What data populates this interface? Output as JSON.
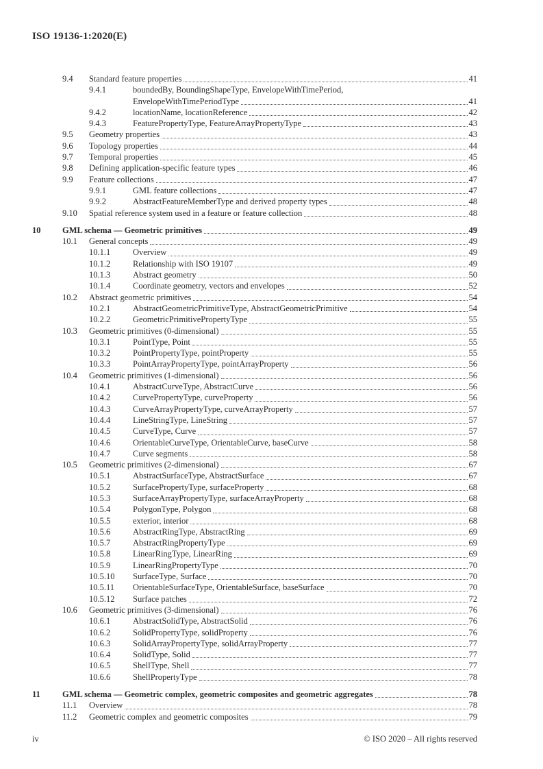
{
  "header": {
    "doc_id": "ISO 19136-1:2020(E)"
  },
  "footer": {
    "page_label": "iv",
    "copyright": "© ISO 2020 – All rights reserved"
  },
  "toc": {
    "entries": [
      {
        "level": 2,
        "number": "9.4",
        "title": "Standard feature properties",
        "page": "41"
      },
      {
        "level": 3,
        "number": "9.4.1",
        "title": "boundedBy, BoundingShapeType, EnvelopeWithTimePeriod,",
        "title_line2": "EnvelopeWithTimePeriodType",
        "page": "41"
      },
      {
        "level": 3,
        "number": "9.4.2",
        "title": "locationName, locationReference",
        "page": "42"
      },
      {
        "level": 3,
        "number": "9.4.3",
        "title": "FeaturePropertyType, FeatureArrayPropertyType",
        "page": "43"
      },
      {
        "level": 2,
        "number": "9.5",
        "title": "Geometry properties",
        "page": "43"
      },
      {
        "level": 2,
        "number": "9.6",
        "title": "Topology properties",
        "page": "44"
      },
      {
        "level": 2,
        "number": "9.7",
        "title": "Temporal properties",
        "page": "45"
      },
      {
        "level": 2,
        "number": "9.8",
        "title": "Defining application-specific feature types",
        "page": "46"
      },
      {
        "level": 2,
        "number": "9.9",
        "title": "Feature collections",
        "page": "47"
      },
      {
        "level": 3,
        "number": "9.9.1",
        "title": "GML feature collections",
        "page": "47"
      },
      {
        "level": 3,
        "number": "9.9.2",
        "title": "AbstractFeatureMemberType and derived property types",
        "page": "48"
      },
      {
        "level": 2,
        "number": "9.10",
        "title": "Spatial reference system used in a feature or feature collection",
        "page": "48"
      },
      {
        "level": 1,
        "number": "10",
        "title": "GML schema — Geometric primitives",
        "page": "49"
      },
      {
        "level": 2,
        "number": "10.1",
        "title": "General concepts",
        "page": "49"
      },
      {
        "level": 3,
        "number": "10.1.1",
        "title": "Overview",
        "page": "49"
      },
      {
        "level": 3,
        "number": "10.1.2",
        "title": "Relationship with ISO 19107",
        "page": "49"
      },
      {
        "level": 3,
        "number": "10.1.3",
        "title": "Abstract geometry",
        "page": "50"
      },
      {
        "level": 3,
        "number": "10.1.4",
        "title": "Coordinate geometry, vectors and envelopes",
        "page": "52"
      },
      {
        "level": 2,
        "number": "10.2",
        "title": "Abstract geometric primitives",
        "page": "54"
      },
      {
        "level": 3,
        "number": "10.2.1",
        "title": "AbstractGeometricPrimitiveType, AbstractGeometricPrimitive",
        "page": "54"
      },
      {
        "level": 3,
        "number": "10.2.2",
        "title": "GeometricPrimitivePropertyType",
        "page": "55"
      },
      {
        "level": 2,
        "number": "10.3",
        "title": "Geometric primitives (0-dimensional)",
        "page": "55"
      },
      {
        "level": 3,
        "number": "10.3.1",
        "title": "PointType, Point",
        "page": "55"
      },
      {
        "level": 3,
        "number": "10.3.2",
        "title": "PointPropertyType, pointProperty",
        "page": "55"
      },
      {
        "level": 3,
        "number": "10.3.3",
        "title": "PointArrayPropertyType, pointArrayProperty",
        "page": "56"
      },
      {
        "level": 2,
        "number": "10.4",
        "title": "Geometric primitives (1-dimensional)",
        "page": "56"
      },
      {
        "level": 3,
        "number": "10.4.1",
        "title": "AbstractCurveType, AbstractCurve",
        "page": "56"
      },
      {
        "level": 3,
        "number": "10.4.2",
        "title": "CurvePropertyType, curveProperty",
        "page": "56"
      },
      {
        "level": 3,
        "number": "10.4.3",
        "title": "CurveArrayPropertyType, curveArrayProperty",
        "page": "57"
      },
      {
        "level": 3,
        "number": "10.4.4",
        "title": "LineStringType, LineString",
        "page": "57"
      },
      {
        "level": 3,
        "number": "10.4.5",
        "title": "CurveType, Curve",
        "page": "57"
      },
      {
        "level": 3,
        "number": "10.4.6",
        "title": "OrientableCurveType, OrientableCurve, baseCurve",
        "page": "58"
      },
      {
        "level": 3,
        "number": "10.4.7",
        "title": "Curve segments",
        "page": "58"
      },
      {
        "level": 2,
        "number": "10.5",
        "title": "Geometric primitives (2-dimensional)",
        "page": "67"
      },
      {
        "level": 3,
        "number": "10.5.1",
        "title": "AbstractSurfaceType, AbstractSurface",
        "page": "67"
      },
      {
        "level": 3,
        "number": "10.5.2",
        "title": "SurfacePropertyType, surfaceProperty",
        "page": "68"
      },
      {
        "level": 3,
        "number": "10.5.3",
        "title": "SurfaceArrayPropertyType, surfaceArrayProperty",
        "page": "68"
      },
      {
        "level": 3,
        "number": "10.5.4",
        "title": "PolygonType, Polygon",
        "page": "68"
      },
      {
        "level": 3,
        "number": "10.5.5",
        "title": "exterior, interior",
        "page": "68"
      },
      {
        "level": 3,
        "number": "10.5.6",
        "title": "AbstractRingType, AbstractRing",
        "page": "69"
      },
      {
        "level": 3,
        "number": "10.5.7",
        "title": "AbstractRingPropertyType",
        "page": "69"
      },
      {
        "level": 3,
        "number": "10.5.8",
        "title": "LinearRingType, LinearRing",
        "page": "69"
      },
      {
        "level": 3,
        "number": "10.5.9",
        "title": "LinearRingPropertyType",
        "page": "70"
      },
      {
        "level": 3,
        "number": "10.5.10",
        "title": "SurfaceType, Surface",
        "page": "70"
      },
      {
        "level": 3,
        "number": "10.5.11",
        "title": "OrientableSurfaceType, OrientableSurface, baseSurface",
        "page": "70"
      },
      {
        "level": 3,
        "number": "10.5.12",
        "title": "Surface patches",
        "page": "72"
      },
      {
        "level": 2,
        "number": "10.6",
        "title": "Geometric primitives (3-dimensional)",
        "page": "76"
      },
      {
        "level": 3,
        "number": "10.6.1",
        "title": "AbstractSolidType, AbstractSolid",
        "page": "76"
      },
      {
        "level": 3,
        "number": "10.6.2",
        "title": "SolidPropertyType, solidProperty",
        "page": "76"
      },
      {
        "level": 3,
        "number": "10.6.3",
        "title": "SolidArrayPropertyType, solidArrayProperty",
        "page": "77"
      },
      {
        "level": 3,
        "number": "10.6.4",
        "title": "SolidType, Solid",
        "page": "77"
      },
      {
        "level": 3,
        "number": "10.6.5",
        "title": "ShellType, Shell",
        "page": "77"
      },
      {
        "level": 3,
        "number": "10.6.6",
        "title": "ShellPropertyType",
        "page": "78"
      },
      {
        "level": 1,
        "number": "11",
        "title": "GML schema — Geometric complex, geometric composites and geometric aggregates",
        "page": "78"
      },
      {
        "level": 2,
        "number": "11.1",
        "title": "Overview",
        "page": "78"
      },
      {
        "level": 2,
        "number": "11.2",
        "title": "Geometric complex and geometric composites",
        "page": "79"
      }
    ]
  }
}
